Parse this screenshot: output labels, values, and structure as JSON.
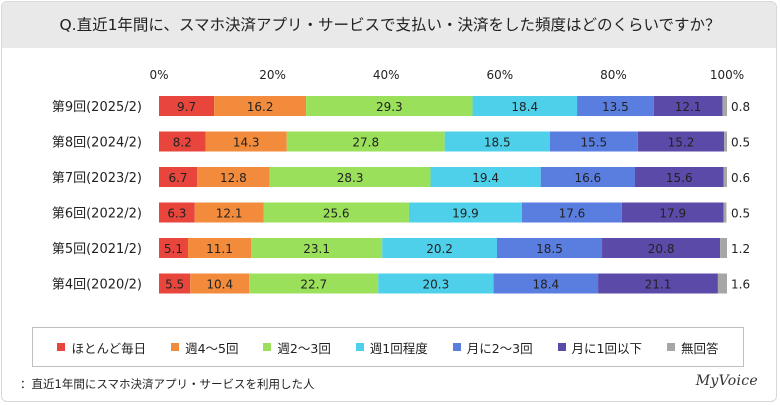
{
  "title": "Q.直近1年間に、スマホ決済アプリ・サービスで支払い・決済をした頻度はどのくらいですか？",
  "footnote": "：直近1年間にスマホ決済アプリ・サービスを利用した人",
  "brand": "MyVoice",
  "chart_data": {
    "type": "bar",
    "orientation": "horizontal",
    "stacked": true,
    "percent_scale": true,
    "xlim": [
      0,
      100
    ],
    "x_ticks": [
      "0%",
      "20%",
      "40%",
      "60%",
      "80%",
      "100%"
    ],
    "categories": [
      "第9回(2025/2)",
      "第8回(2024/2)",
      "第7回(2023/2)",
      "第6回(2022/2)",
      "第5回(2021/2)",
      "第4回(2020/2)"
    ],
    "legend_position": "bottom",
    "series": [
      {
        "name": "ほとんど毎日",
        "color": "#e8453c",
        "values": [
          9.7,
          8.2,
          6.7,
          6.3,
          5.1,
          5.5
        ]
      },
      {
        "name": "週4～5回",
        "color": "#f28c3c",
        "values": [
          16.2,
          14.3,
          12.8,
          12.1,
          11.1,
          10.4
        ]
      },
      {
        "name": "週2～3回",
        "color": "#9be05a",
        "values": [
          29.3,
          27.8,
          28.3,
          25.6,
          23.1,
          22.7
        ]
      },
      {
        "name": "週1回程度",
        "color": "#4fd0ea",
        "values": [
          18.4,
          18.5,
          19.4,
          19.9,
          20.2,
          20.3
        ]
      },
      {
        "name": "月に2～3回",
        "color": "#5a7ee0",
        "values": [
          13.5,
          15.5,
          16.6,
          17.6,
          18.5,
          18.4
        ]
      },
      {
        "name": "月に1回以下",
        "color": "#5b4aa8",
        "values": [
          12.1,
          15.2,
          15.6,
          17.9,
          20.8,
          21.1
        ]
      },
      {
        "name": "無回答",
        "color": "#a6a6a6",
        "values": [
          0.8,
          0.5,
          0.6,
          0.5,
          1.2,
          1.6
        ]
      }
    ]
  }
}
